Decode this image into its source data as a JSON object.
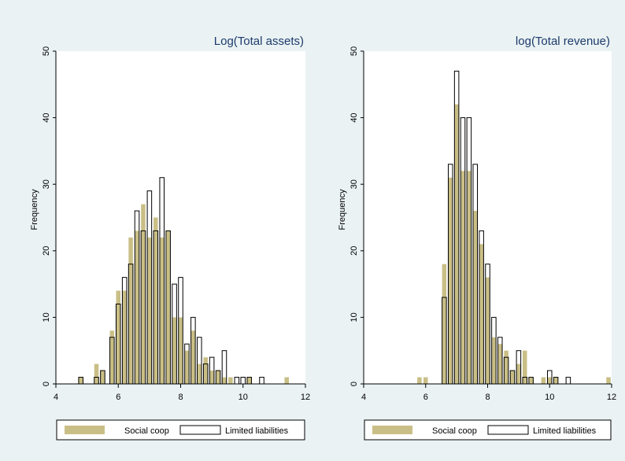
{
  "colors": {
    "background": "#eaf2f3",
    "plot_background": "#ffffff",
    "social_fill": "#c9bf86",
    "limited_stroke": "#000000",
    "title_text": "#1c3b6c",
    "axis": "#000000"
  },
  "legend": [
    {
      "label": "Social coop",
      "swatch": "filled"
    },
    {
      "label": "Limited liabilities",
      "swatch": "outline"
    }
  ],
  "chart_data": [
    {
      "type": "bar",
      "title": "Log(Total assets)",
      "ylabel": "Frequency",
      "xlabel": "",
      "xlim": [
        4,
        12
      ],
      "ylim": [
        0,
        50
      ],
      "xticks": [
        4,
        6,
        8,
        10,
        12
      ],
      "yticks": [
        0,
        10,
        20,
        30,
        40,
        50
      ],
      "grid": false,
      "legend_position": "bottom",
      "series": [
        {
          "name": "Social coop",
          "style": "filled",
          "x": [
            4.8,
            5.3,
            5.5,
            5.8,
            6.0,
            6.2,
            6.4,
            6.6,
            6.8,
            7.0,
            7.2,
            7.4,
            7.6,
            7.8,
            8.0,
            8.2,
            8.4,
            8.6,
            8.8,
            9.0,
            9.2,
            9.4,
            9.6,
            10.2,
            11.4
          ],
          "y": [
            1,
            3,
            2,
            8,
            14,
            14,
            22,
            23,
            27,
            22,
            25,
            22,
            23,
            10,
            10,
            5,
            8,
            3,
            4,
            2,
            2,
            1,
            1,
            1,
            1
          ]
        },
        {
          "name": "Limited liabilities",
          "style": "outline",
          "x": [
            4.8,
            5.3,
            5.5,
            5.8,
            6.0,
            6.2,
            6.4,
            6.6,
            6.8,
            7.0,
            7.2,
            7.4,
            7.6,
            7.8,
            8.0,
            8.2,
            8.4,
            8.6,
            8.8,
            9.0,
            9.2,
            9.4,
            9.6,
            9.8,
            10.0,
            10.2,
            10.6
          ],
          "y": [
            1,
            1,
            2,
            7,
            12,
            16,
            18,
            26,
            23,
            29,
            23,
            31,
            23,
            15,
            16,
            6,
            10,
            7,
            3,
            4,
            2,
            5,
            0,
            1,
            1,
            1,
            1
          ]
        }
      ]
    },
    {
      "type": "bar",
      "title": "log(Total revenue)",
      "ylabel": "Frequency",
      "xlabel": "",
      "xlim": [
        4,
        12
      ],
      "ylim": [
        0,
        50
      ],
      "xticks": [
        4,
        6,
        8,
        10,
        12
      ],
      "yticks": [
        0,
        10,
        20,
        30,
        40,
        50
      ],
      "grid": false,
      "legend_position": "bottom",
      "series": [
        {
          "name": "Social coop",
          "style": "filled",
          "x": [
            5.8,
            6.0,
            6.6,
            6.8,
            7.0,
            7.2,
            7.4,
            7.6,
            7.8,
            8.0,
            8.2,
            8.4,
            8.6,
            8.8,
            9.0,
            9.2,
            9.4,
            9.8,
            10.0,
            10.2,
            11.9
          ],
          "y": [
            1,
            1,
            18,
            31,
            42,
            32,
            32,
            26,
            21,
            16,
            7,
            6,
            5,
            2,
            3,
            5,
            1,
            1,
            1,
            1,
            1
          ]
        },
        {
          "name": "Limited liabilities",
          "style": "outline",
          "x": [
            6.6,
            6.8,
            7.0,
            7.2,
            7.4,
            7.6,
            7.8,
            8.0,
            8.2,
            8.4,
            8.6,
            8.8,
            9.0,
            9.2,
            9.4,
            10.0,
            10.2,
            10.6
          ],
          "y": [
            13,
            33,
            47,
            40,
            40,
            33,
            23,
            18,
            10,
            7,
            4,
            2,
            5,
            1,
            1,
            2,
            1,
            1
          ]
        }
      ]
    }
  ]
}
